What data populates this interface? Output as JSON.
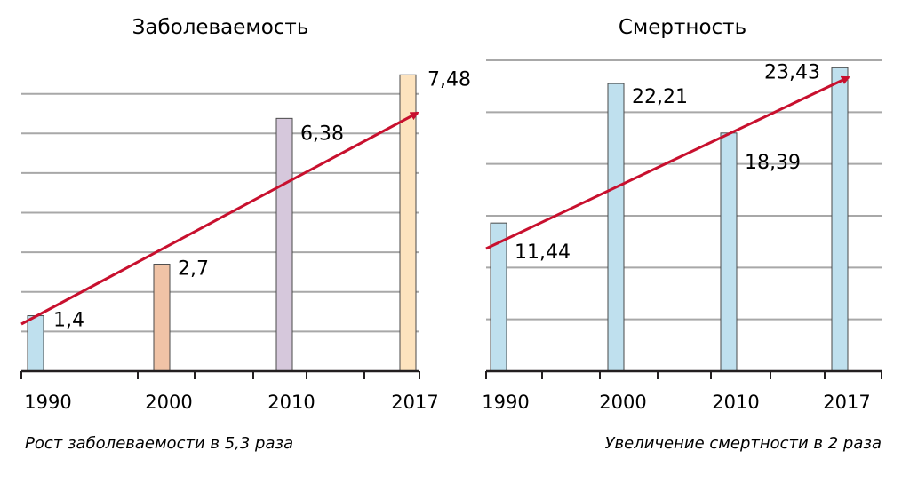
{
  "chart_data": [
    {
      "type": "bar",
      "title": "Заболеваемость",
      "categories": [
        "1990",
        "2000",
        "2010",
        "2017"
      ],
      "values": [
        1.4,
        2.7,
        6.38,
        7.48
      ],
      "value_labels": [
        "1,4",
        "2,7",
        "6,38",
        "7,48"
      ],
      "bar_colors": [
        "#bfe0ee",
        "#f0c3a6",
        "#d6c8dc",
        "#fde3be"
      ],
      "ylim": [
        0,
        7.8
      ],
      "grid_step": 1,
      "grid": true,
      "trend_arrow": true,
      "caption": "Рост заболеваемости в 5,3 раза"
    },
    {
      "type": "bar",
      "title": "Смертность",
      "categories": [
        "1990",
        "2000",
        "2010",
        "2017"
      ],
      "values": [
        11.44,
        22.21,
        18.39,
        23.43
      ],
      "value_labels": [
        "11,44",
        "22,21",
        "18,39",
        "23,43"
      ],
      "bar_colors": [
        "#bfe0ee",
        "#bfe0ee",
        "#bfe0ee",
        "#bfe0ee"
      ],
      "ylim": [
        0,
        24
      ],
      "grid_step": 4,
      "grid": true,
      "trend_arrow": true,
      "caption": "Увеличение смертности в 2 раза"
    }
  ],
  "colors": {
    "grid": "#a8a8a8",
    "axis": "#231f20",
    "arrow": "#c8102e",
    "bar_stroke": "#4a4a4a"
  }
}
